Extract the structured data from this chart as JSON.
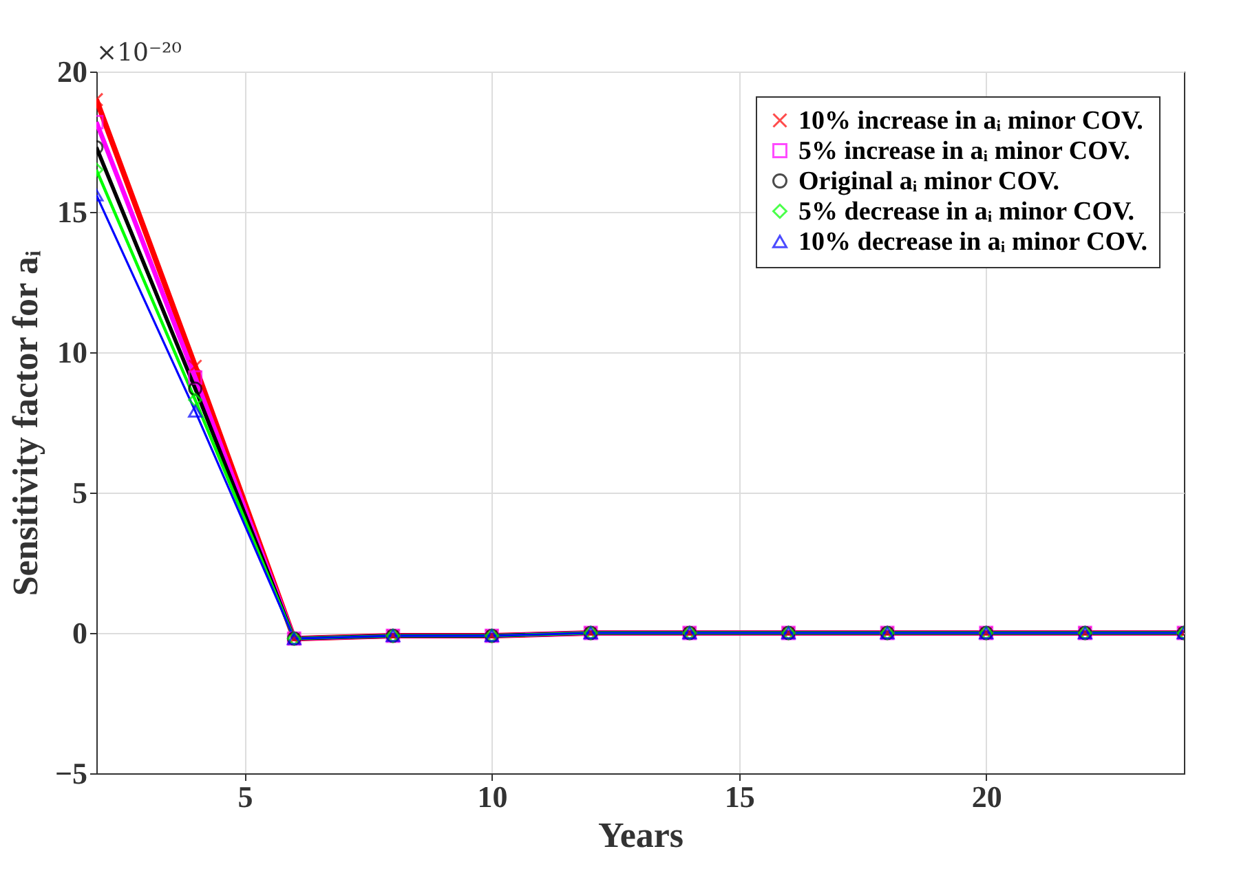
{
  "chart_data": {
    "type": "line",
    "xlabel": "Years",
    "ylabel": "Sensitivity factor for aᵢ",
    "annotations": [
      "×10⁻²⁰"
    ],
    "x": [
      2,
      4,
      6,
      8,
      10,
      12,
      14,
      16,
      18,
      20,
      22,
      24
    ],
    "xlim": [
      2,
      24
    ],
    "xticks": [
      5,
      10,
      15,
      20
    ],
    "ylim": [
      -5,
      20
    ],
    "yticks": [
      -5,
      0,
      5,
      10,
      15,
      20
    ],
    "grid": true,
    "legend": "top right",
    "series": [
      {
        "name": "10% increase in aᵢ minor COV.",
        "color": "#ff0000",
        "marker": "cross",
        "values": [
          19.0,
          9.5,
          -0.2,
          -0.1,
          -0.1,
          0,
          0,
          0,
          0,
          0,
          0,
          0
        ]
      },
      {
        "name": "5% increase in aᵢ minor COV.",
        "color": "#ff00ff",
        "marker": "square",
        "values": [
          18.2,
          9.1,
          -0.2,
          -0.1,
          -0.1,
          0,
          0,
          0,
          0,
          0,
          0,
          0
        ]
      },
      {
        "name": "Original aᵢ minor COV.",
        "color": "#000000",
        "marker": "circle",
        "values": [
          17.3,
          8.7,
          -0.2,
          -0.1,
          -0.1,
          0,
          0,
          0,
          0,
          0,
          0,
          0
        ]
      },
      {
        "name": "5% decrease in aᵢ minor COV.",
        "color": "#00ff00",
        "marker": "diamond",
        "values": [
          16.5,
          8.3,
          -0.2,
          -0.1,
          -0.1,
          0,
          0,
          0,
          0,
          0,
          0,
          0
        ]
      },
      {
        "name": "10% decrease in aᵢ minor COV.",
        "color": "#0000ff",
        "marker": "triangle",
        "values": [
          15.6,
          7.9,
          -0.2,
          -0.1,
          -0.1,
          0,
          0,
          0,
          0,
          0,
          0,
          0
        ]
      }
    ]
  }
}
